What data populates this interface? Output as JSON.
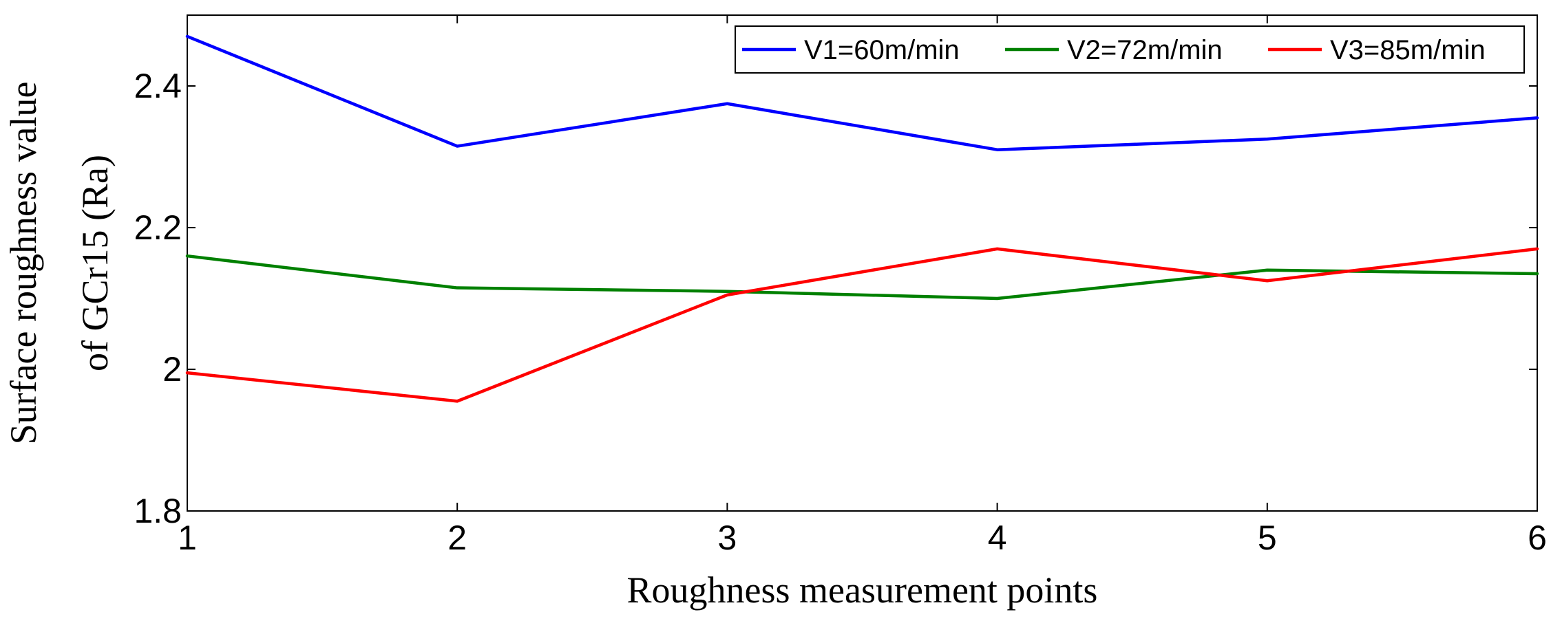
{
  "chart_data": {
    "type": "line",
    "title": "",
    "x": [
      1,
      2,
      3,
      4,
      5,
      6
    ],
    "xlabel": "Roughness measurement points",
    "ylabel_lines": [
      "Surface roughness value",
      "of GCr15 (Ra)"
    ],
    "xlim": [
      1,
      6
    ],
    "ylim": [
      1.8,
      2.5
    ],
    "xticks": [
      1,
      2,
      3,
      4,
      5,
      6
    ],
    "xtick_labels": [
      "1",
      "2",
      "3",
      "4",
      "5",
      "6"
    ],
    "yticks": [
      1.8,
      2.0,
      2.2,
      2.4
    ],
    "ytick_labels": [
      "1.8",
      "2",
      "2.2",
      "2.4"
    ],
    "grid": false,
    "legend_position": "top-right",
    "series": [
      {
        "name": "V1=60m/min",
        "color": "#0000ff",
        "values": [
          2.47,
          2.315,
          2.375,
          2.31,
          2.325,
          2.355
        ]
      },
      {
        "name": "V2=72m/min",
        "color": "#008000",
        "values": [
          2.16,
          2.115,
          2.11,
          2.1,
          2.14,
          2.135
        ]
      },
      {
        "name": "V3=85m/min",
        "color": "#ff0000",
        "values": [
          1.995,
          1.955,
          2.105,
          2.17,
          2.125,
          2.17
        ]
      }
    ]
  }
}
